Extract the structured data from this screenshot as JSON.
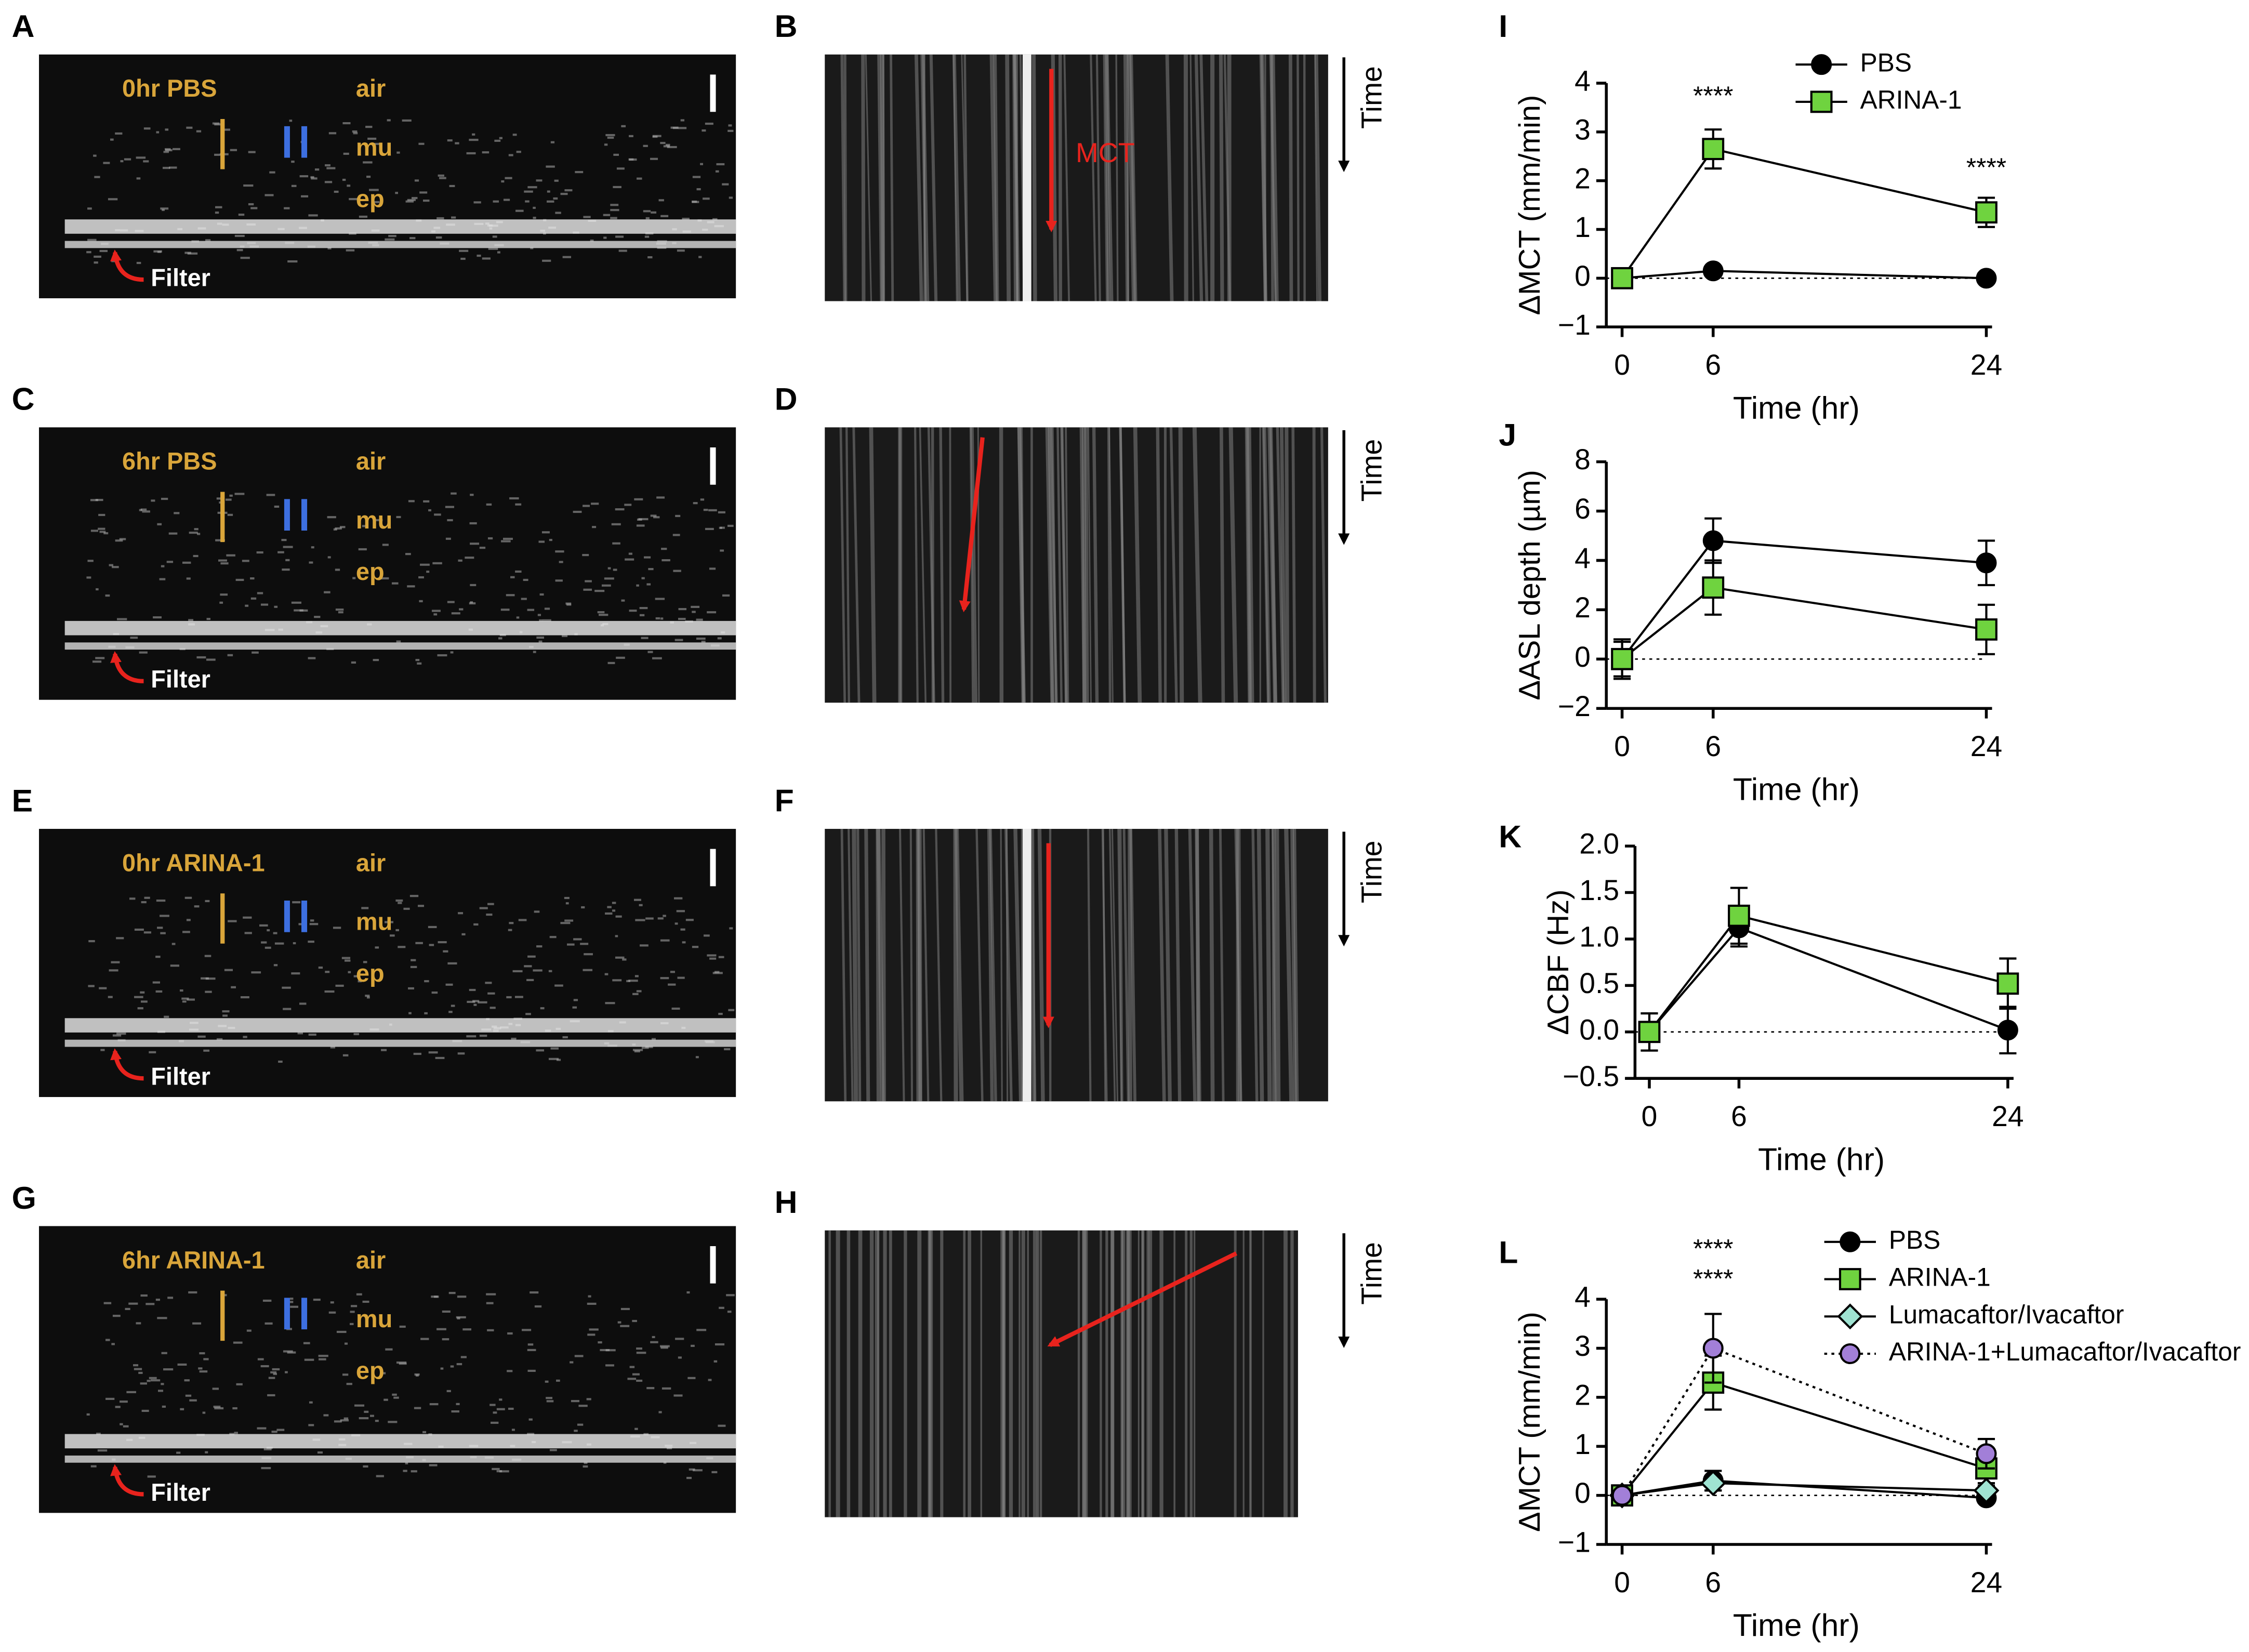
{
  "image_panels": [
    {
      "letter": "A",
      "condition": "0hr PBS",
      "labels": [
        "air",
        "mu",
        "ep"
      ],
      "filter": "Filter"
    },
    {
      "letter": "C",
      "condition": "6hr PBS",
      "labels": [
        "air",
        "mu",
        "ep"
      ],
      "filter": "Filter"
    },
    {
      "letter": "E",
      "condition": "0hr ARINA-1",
      "labels": [
        "air",
        "mu",
        "ep"
      ],
      "filter": "Filter"
    },
    {
      "letter": "G",
      "condition": "6hr ARINA-1",
      "labels": [
        "air",
        "mu",
        "ep"
      ],
      "filter": "Filter"
    }
  ],
  "kymograph_panels": [
    {
      "letter": "B",
      "time": "Time",
      "annotation": "MCT"
    },
    {
      "letter": "D",
      "time": "Time"
    },
    {
      "letter": "F",
      "time": "Time"
    },
    {
      "letter": "H",
      "time": "Time"
    }
  ],
  "chart_data": [
    {
      "type": "line",
      "panel": "I",
      "xlabel": "Time (hr)",
      "ylabel": "ΔMCT (mm/min)",
      "x": [
        0,
        6,
        24
      ],
      "xlim": [
        0,
        24
      ],
      "xticks": [
        0,
        6,
        24
      ],
      "ylim": [
        -1,
        4
      ],
      "yticks": [
        {
          "value": -1,
          "label": "−1"
        },
        0,
        1,
        2,
        3,
        4
      ],
      "annotations": [
        "****",
        "****"
      ],
      "legend": "upper right",
      "series": [
        {
          "name": "PBS",
          "color": "#000000",
          "marker": "circle",
          "values": [
            0,
            0.15,
            0
          ],
          "errors": [
            0.05,
            0.05,
            0.05
          ]
        },
        {
          "name": "ARINA-1",
          "color": "#6fd33f",
          "marker": "square",
          "values": [
            0,
            2.65,
            1.35
          ],
          "errors": [
            0.1,
            0.4,
            0.3
          ]
        }
      ]
    },
    {
      "type": "line",
      "panel": "J",
      "xlabel": "Time (hr)",
      "ylabel": "ΔASL depth (µm)",
      "x": [
        0,
        6,
        24
      ],
      "xlim": [
        0,
        24
      ],
      "xticks": [
        0,
        6,
        24
      ],
      "ylim": [
        -2,
        8
      ],
      "yticks": [
        {
          "value": -2,
          "label": "−2"
        },
        0,
        2,
        4,
        6,
        8
      ],
      "series": [
        {
          "name": "PBS",
          "color": "#000000",
          "marker": "circle",
          "values": [
            0,
            4.8,
            3.9
          ],
          "errors": [
            0.8,
            0.9,
            0.9
          ]
        },
        {
          "name": "ARINA-1",
          "color": "#6fd33f",
          "marker": "square",
          "values": [
            0,
            2.9,
            1.2
          ],
          "errors": [
            0.7,
            1.1,
            1.0
          ]
        }
      ]
    },
    {
      "type": "line",
      "panel": "K",
      "xlabel": "Time (hr)",
      "ylabel": "ΔCBF (Hz)",
      "x": [
        0,
        6,
        24
      ],
      "xlim": [
        0,
        24
      ],
      "xticks": [
        0,
        6,
        24
      ],
      "ylim": [
        -0.5,
        2.0
      ],
      "yticks": [
        {
          "value": -0.5,
          "label": "−0.5"
        },
        {
          "value": 0,
          "label": "0.0"
        },
        0.5,
        {
          "value": 1,
          "label": "1.0"
        },
        1.5,
        {
          "value": 2,
          "label": "2.0"
        }
      ],
      "series": [
        {
          "name": "PBS",
          "color": "#000000",
          "marker": "circle",
          "values": [
            0,
            1.12,
            0.02
          ],
          "errors": [
            0.2,
            0.2,
            0.25
          ]
        },
        {
          "name": "ARINA-1",
          "color": "#6fd33f",
          "marker": "square",
          "values": [
            0,
            1.25,
            0.52
          ],
          "errors": [
            0.2,
            0.3,
            0.27
          ]
        }
      ]
    },
    {
      "type": "line",
      "panel": "L",
      "xlabel": "Time (hr)",
      "ylabel": "ΔMCT (mm/min)",
      "x": [
        0,
        6,
        24
      ],
      "xlim": [
        0,
        24
      ],
      "xticks": [
        0,
        6,
        24
      ],
      "ylim": [
        -1,
        4
      ],
      "yticks": [
        {
          "value": -1,
          "label": "−1"
        },
        0,
        1,
        2,
        3,
        4
      ],
      "annotations": [
        "****",
        "****"
      ],
      "legend": "upper right",
      "series": [
        {
          "name": "PBS",
          "color": "#000000",
          "marker": "circle",
          "values": [
            0,
            0.3,
            -0.05
          ],
          "errors": [
            0.1,
            0.2,
            0.1
          ]
        },
        {
          "name": "ARINA-1",
          "color": "#6fd33f",
          "marker": "square",
          "values": [
            0,
            2.3,
            0.55
          ],
          "errors": [
            0.1,
            0.55,
            0.3
          ]
        },
        {
          "name": "Lumacaftor/Ivacaftor",
          "color": "#9fe3d2",
          "marker": "diamond",
          "values": [
            0,
            0.25,
            0.1
          ],
          "errors": [
            0.1,
            0.15,
            0.1
          ]
        },
        {
          "name": "ARINA-1+Lumacaftor/Ivacaftor",
          "color": "#a27fd8",
          "marker": "circle",
          "linestyle": "dotted",
          "values": [
            0,
            3.0,
            0.85
          ],
          "errors": [
            0.1,
            0.7,
            0.3
          ]
        }
      ]
    }
  ]
}
